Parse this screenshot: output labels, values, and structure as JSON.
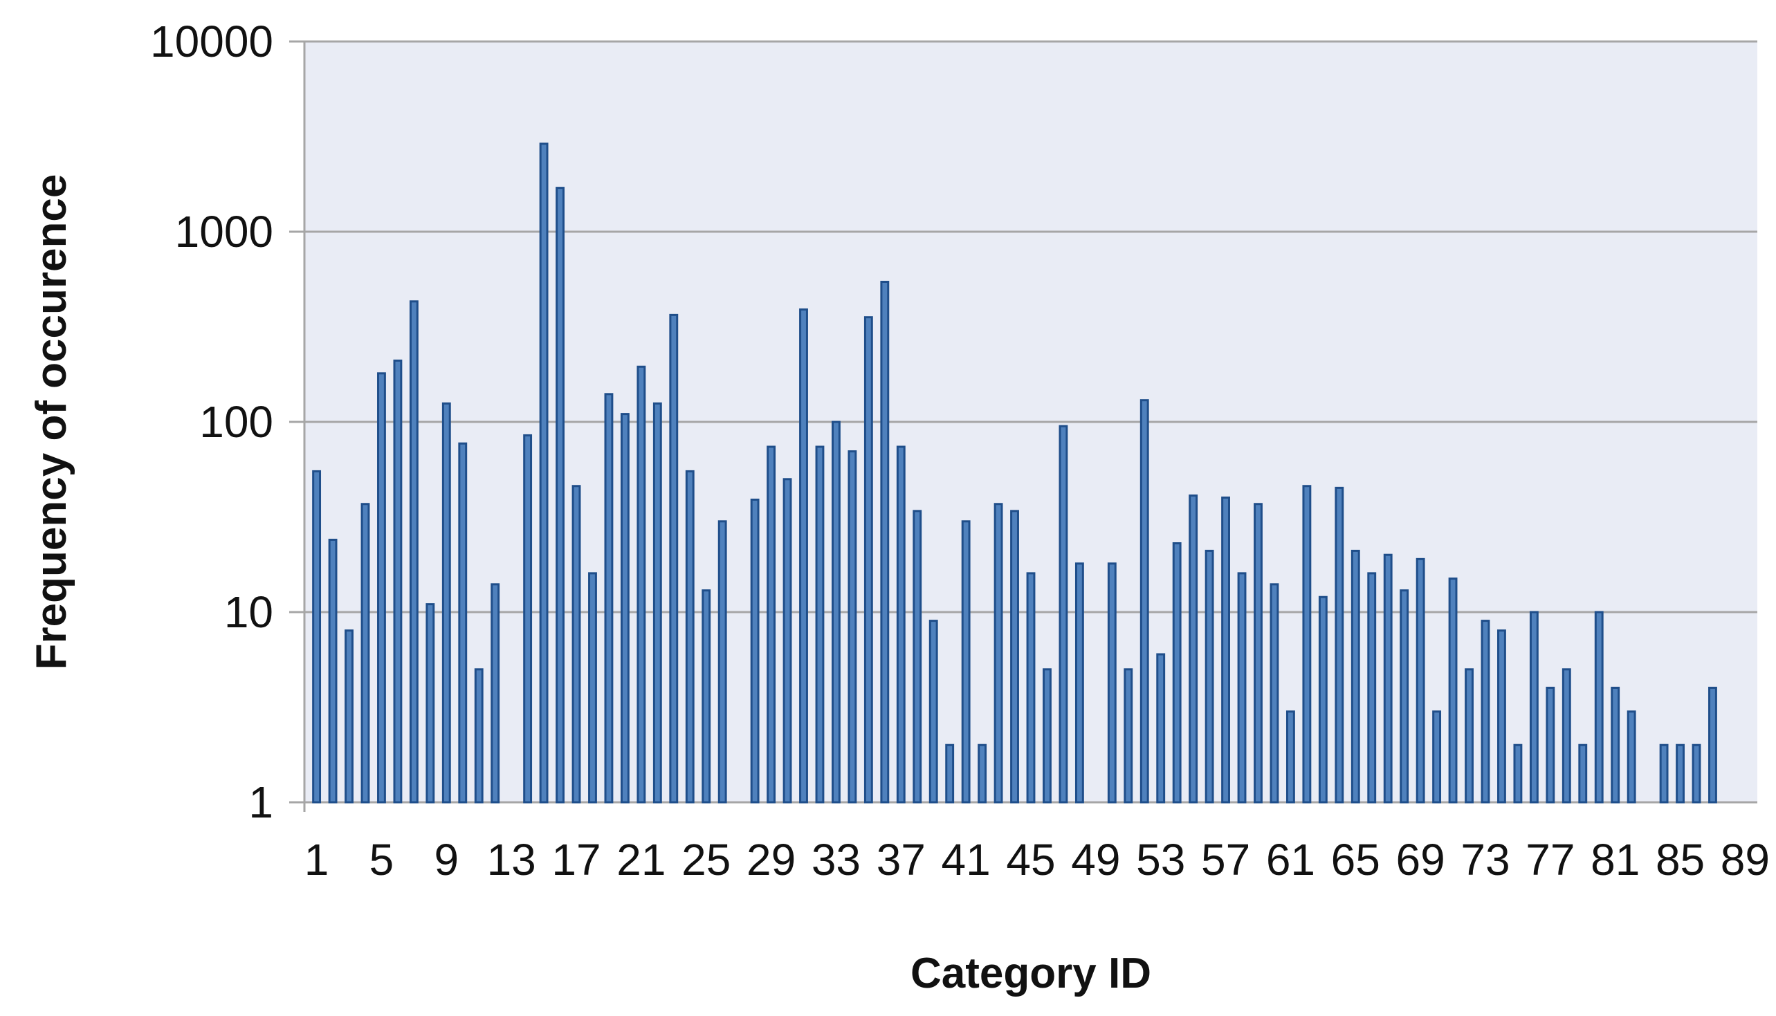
{
  "chart_data": {
    "type": "bar",
    "xlabel": "Category ID",
    "ylabel": "Frequency of occurence",
    "yscale": "log",
    "ylim": [
      1,
      10000
    ],
    "yticks": [
      1,
      10,
      100,
      1000,
      10000
    ],
    "ytick_labels": [
      "1",
      "10",
      "100",
      "1000",
      "10000"
    ],
    "xticks": [
      1,
      5,
      9,
      13,
      17,
      21,
      25,
      29,
      33,
      37,
      41,
      45,
      49,
      53,
      57,
      61,
      65,
      69,
      73,
      77,
      81,
      85,
      89
    ],
    "xtick_labels": [
      "1",
      "5",
      "9",
      "13",
      "17",
      "21",
      "25",
      "29",
      "33",
      "37",
      "41",
      "45",
      "49",
      "53",
      "57",
      "61",
      "65",
      "69",
      "73",
      "77",
      "81",
      "85",
      "89"
    ],
    "x": [
      1,
      2,
      3,
      4,
      5,
      6,
      7,
      8,
      9,
      10,
      11,
      12,
      13,
      14,
      15,
      16,
      17,
      18,
      19,
      20,
      21,
      22,
      23,
      24,
      25,
      26,
      27,
      28,
      29,
      30,
      31,
      32,
      33,
      34,
      35,
      36,
      37,
      38,
      39,
      40,
      41,
      42,
      43,
      44,
      45,
      46,
      47,
      48,
      49,
      50,
      51,
      52,
      53,
      54,
      55,
      56,
      57,
      58,
      59,
      60,
      61,
      62,
      63,
      64,
      65,
      66,
      67,
      68,
      69,
      70,
      71,
      72,
      73,
      74,
      75,
      76,
      77,
      78,
      79,
      80,
      81,
      82,
      83,
      84,
      85,
      86,
      87,
      88,
      89
    ],
    "values": [
      55,
      24,
      8,
      37,
      180,
      210,
      430,
      11,
      125,
      77,
      5,
      14,
      null,
      85,
      2900,
      1700,
      46,
      16,
      140,
      110,
      195,
      125,
      365,
      55,
      13,
      30,
      null,
      39,
      74,
      50,
      390,
      74,
      100,
      70,
      355,
      545,
      74,
      34,
      9,
      2,
      30,
      2,
      37,
      34,
      16,
      5,
      95,
      18,
      null,
      18,
      5,
      130,
      6,
      23,
      41,
      21,
      40,
      16,
      37,
      14,
      3,
      46,
      12,
      45,
      21,
      16,
      20,
      13,
      19,
      3,
      15,
      5,
      9,
      8,
      2,
      10,
      4,
      5,
      2,
      10,
      4,
      3,
      null,
      2,
      2,
      2,
      4,
      null,
      null
    ],
    "grid": true,
    "legend": false,
    "colors": {
      "plot_background": "#e9ecf5",
      "bar_fill": "#4f81bd",
      "bar_stroke": "#1f4e8a",
      "gridline": "#a6a6a6"
    }
  }
}
